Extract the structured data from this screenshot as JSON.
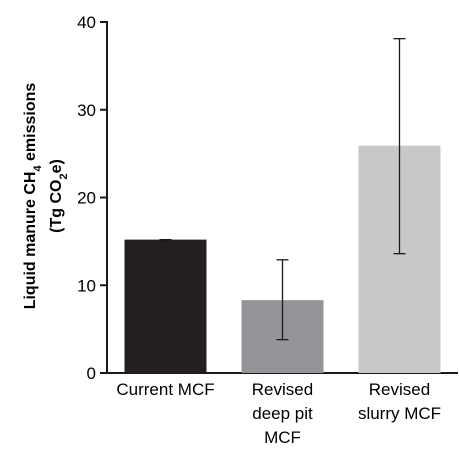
{
  "chart_data": {
    "type": "bar",
    "ylabel": {
      "line1_prefix": "Liquid manure CH",
      "line1_sub": "4",
      "line1_suffix": " emissions",
      "line2_prefix": "(Tg CO",
      "line2_sub": "2",
      "line2_suffix": "e)"
    },
    "ylim": [
      0,
      40
    ],
    "yticks": [
      0,
      10,
      20,
      30,
      40
    ],
    "categories": [
      [
        "Current MCF"
      ],
      [
        "Revised",
        "deep pit",
        "MCF"
      ],
      [
        "Revised",
        "slurry MCF"
      ]
    ],
    "values": [
      15.2,
      8.3,
      25.9
    ],
    "error_low": [
      15.1,
      3.8,
      13.6
    ],
    "error_high": [
      15.2,
      12.9,
      38.1
    ],
    "colors": [
      "#231f20",
      "#939598",
      "#c7c8ca"
    ],
    "grid": false,
    "legend": "none"
  }
}
